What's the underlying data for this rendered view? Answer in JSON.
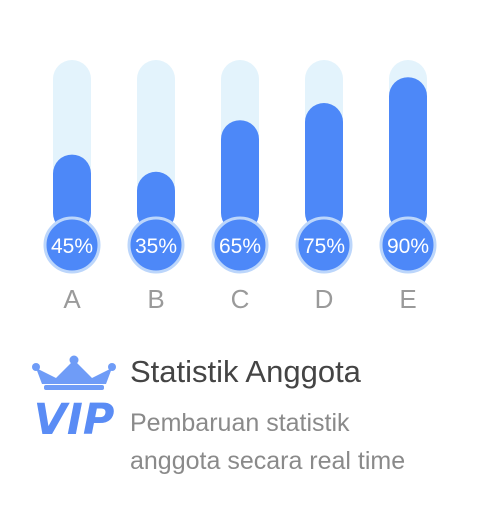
{
  "chart_data": {
    "type": "bar",
    "categories": [
      "A",
      "B",
      "C",
      "D",
      "E"
    ],
    "values": [
      45,
      35,
      65,
      75,
      90
    ],
    "value_labels": [
      "45%",
      "35%",
      "65%",
      "75%",
      "90%"
    ],
    "ylim": [
      0,
      100
    ],
    "grid": false,
    "legend": "none"
  },
  "info": {
    "logo_text": "VIP",
    "title": "Statistik Anggota",
    "description_line1": "Pembaruan statistik",
    "description_line2": "anggota secara real time"
  },
  "colors": {
    "track": "#e3f3fc",
    "bar": "#4d88f8",
    "badge_ring": "#bcd6fb",
    "label_text": "#ffffff",
    "category_text": "#9a9a9a",
    "vip_blue": "#5a8cf5",
    "title_text": "#444444",
    "desc_text": "#8a8a8a"
  },
  "icons": {
    "logo": "vip-crown-icon"
  }
}
